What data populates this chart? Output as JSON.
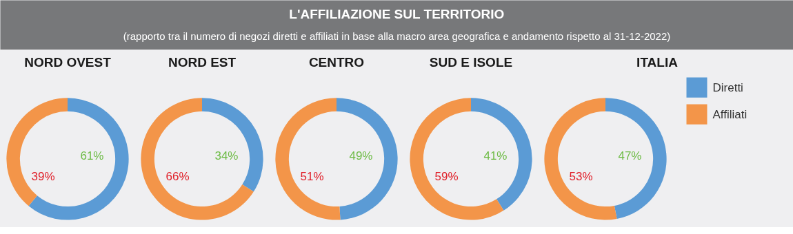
{
  "chart_data": [
    {
      "type": "other",
      "title": "L'AFFILIAZIONE SUL TERRITORIO",
      "subtitle": "(rapporto tra il numero di negozi diretti e affiliati in base alla macro area geografica e andamento rispetto al 31-12-2022)"
    },
    {
      "type": "donut",
      "title": "NORD OVEST",
      "categories": [
        "Diretti",
        "Affiliati"
      ],
      "values": [
        61,
        39
      ],
      "value_labels": [
        "61%",
        "39%"
      ],
      "colors": [
        "#5b9bd5",
        "#f39549"
      ],
      "legend": "right"
    },
    {
      "type": "donut",
      "title": "NORD EST",
      "categories": [
        null,
        null
      ],
      "values": [
        34,
        66
      ],
      "value_labels": [
        "34%",
        "66%"
      ],
      "colors": [
        "#5b9bd5",
        "#f39549"
      ]
    },
    {
      "type": "donut",
      "title": "CENTRO",
      "categories": [
        null,
        null
      ],
      "values": [
        49,
        51
      ],
      "value_labels": [
        "49%",
        "51%"
      ],
      "colors": [
        "#5b9bd5",
        "#f39549"
      ]
    },
    {
      "type": "donut",
      "title": "SUD E ISOLE",
      "categories": [
        null,
        null
      ],
      "values": [
        41,
        59
      ],
      "value_labels": [
        "41%",
        "59%"
      ],
      "colors": [
        "#5b9bd5",
        "#f39549"
      ]
    },
    {
      "type": "donut",
      "title": "ITALIA",
      "categories": [
        null,
        null
      ],
      "values": [
        47,
        53
      ],
      "value_labels": [
        "47%",
        "53%"
      ],
      "colors": [
        "#5b9bd5",
        "#f39549"
      ]
    }
  ]
}
